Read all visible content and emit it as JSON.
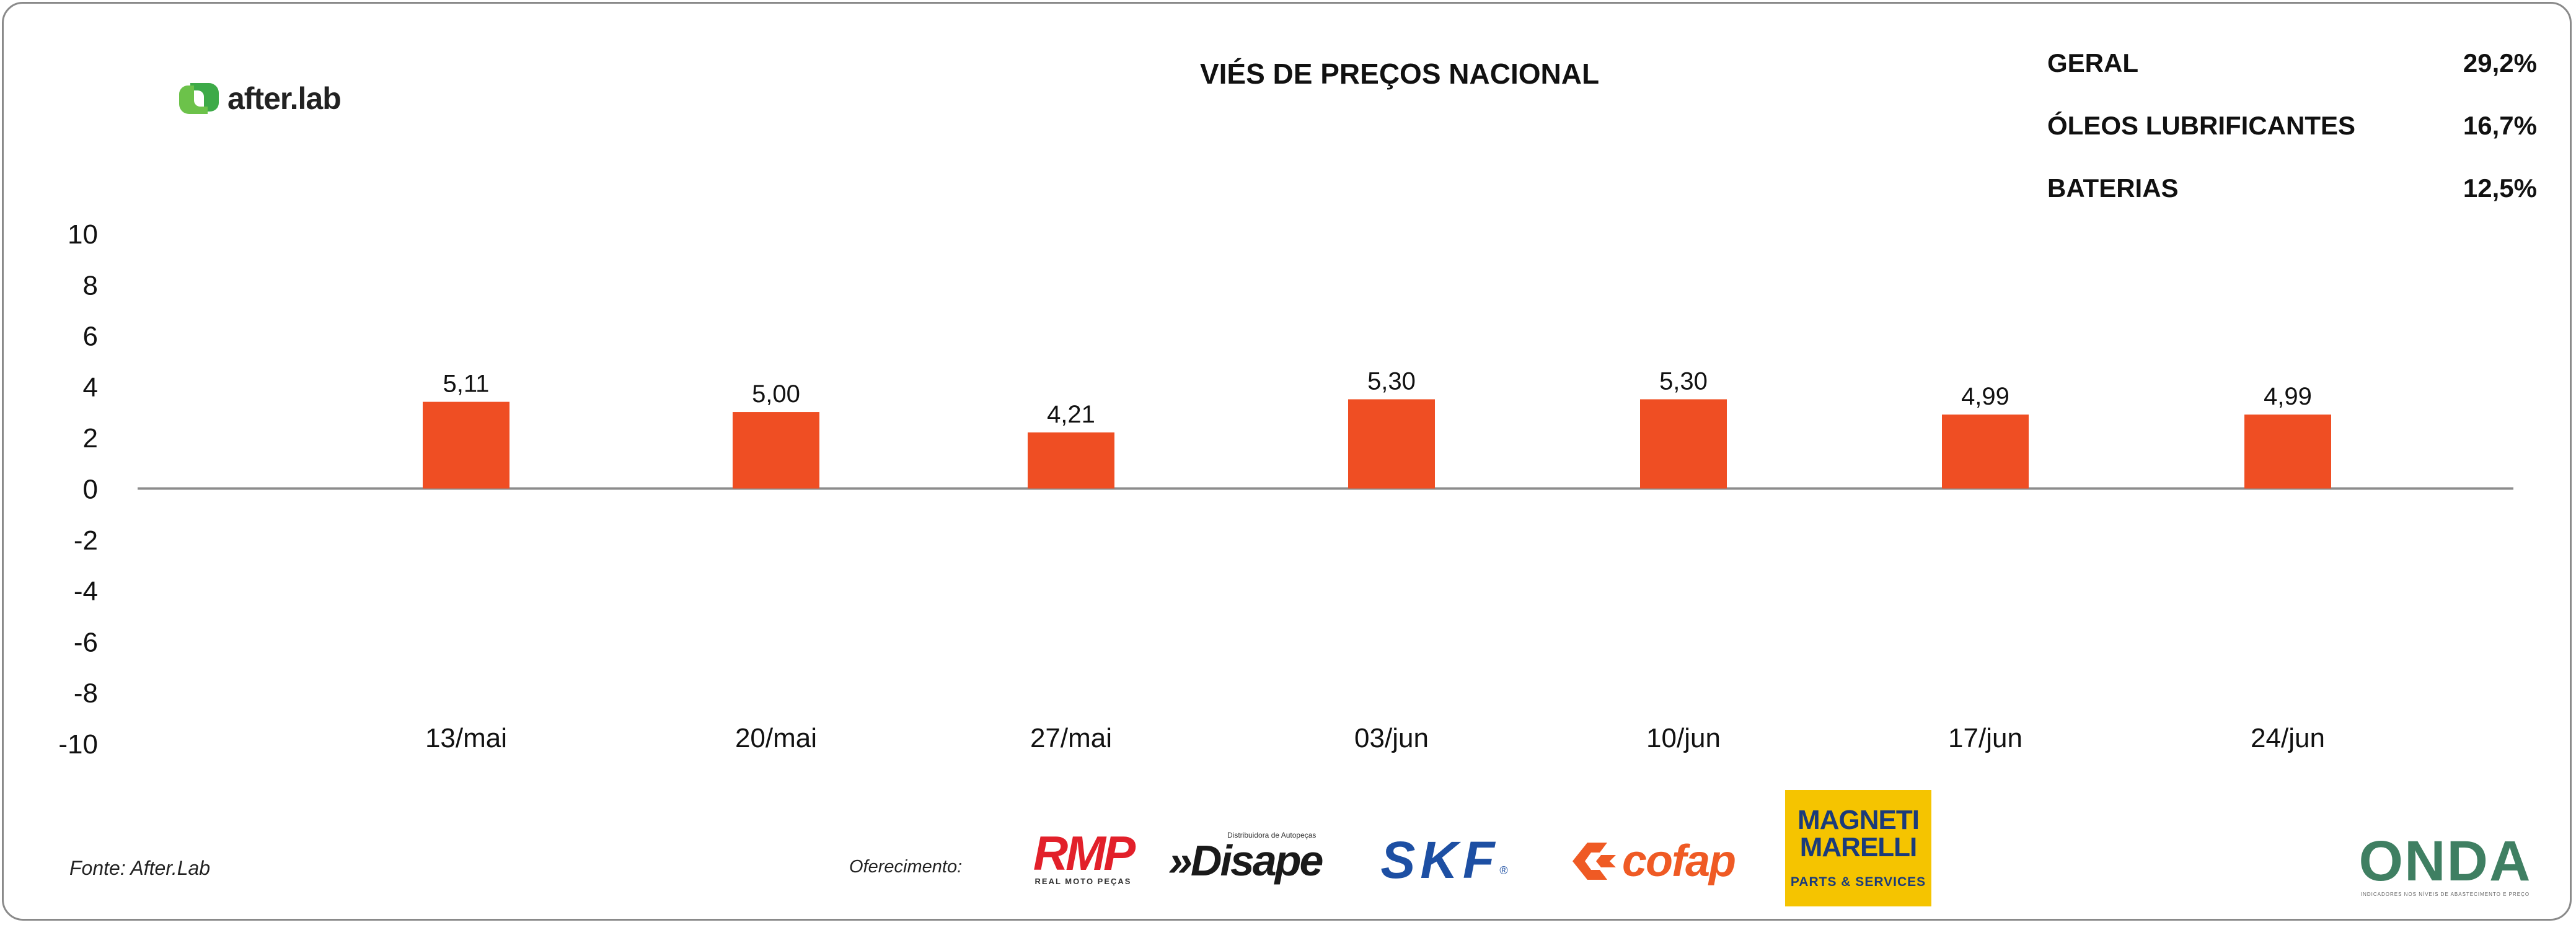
{
  "brand": {
    "name": "after.lab",
    "icon": "after-lab-logo-icon"
  },
  "chart_data": {
    "type": "bar",
    "title": "VIÉS DE PREÇOS NACIONAL",
    "categories": [
      "13/mai",
      "20/mai",
      "27/mai",
      "03/jun",
      "10/jun",
      "17/jun",
      "24/jun"
    ],
    "values": [
      5.11,
      5.0,
      4.21,
      5.3,
      5.3,
      4.99,
      4.99
    ],
    "data_labels": [
      "5,11",
      "5,00",
      "4,21",
      "5,30",
      "5,30",
      "4,99",
      "4,99"
    ],
    "plot_heights": [
      3.4,
      3.0,
      2.2,
      3.5,
      3.5,
      2.9,
      2.9
    ],
    "ylim": [
      -10,
      10
    ],
    "yticks": [
      "10",
      "8",
      "6",
      "4",
      "2",
      "0",
      "-2",
      "-4",
      "-6",
      "-8",
      "-10"
    ],
    "ytick_values": [
      10,
      8,
      6,
      4,
      2,
      0,
      -2,
      -4,
      -6,
      -8,
      -10
    ],
    "xlabel": "",
    "ylabel": "",
    "grid": false,
    "legend": "none",
    "bar_color": "#ef4e23",
    "axis_color": "#8c8c8c"
  },
  "summary": [
    {
      "label": "GERAL",
      "value": "29,2%"
    },
    {
      "label": "ÓLEOS LUBRIFICANTES",
      "value": "16,7%"
    },
    {
      "label": "BATERIAS",
      "value": "12,5%"
    }
  ],
  "footer": {
    "source": "Fonte: After.Lab",
    "offer_label": "Oferecimento:"
  },
  "sponsors": {
    "rmp": {
      "logo": "RMP",
      "sub": "REAL MOTO PEÇAS"
    },
    "disape": {
      "logo": "»Disape",
      "sub": "Distribuidora de Autopeças"
    },
    "skf": {
      "logo": "SKF",
      "reg": "®"
    },
    "cofap": {
      "logo": "cofap"
    },
    "magneti": {
      "line1": "MAGNETI",
      "line2": "MARELLI",
      "sub": "PARTS & SERVICES"
    },
    "onda": {
      "logo": "ONDA",
      "sub": "INDICADORES NOS NÍVEIS DE ABASTECIMENTO E PREÇO"
    }
  }
}
